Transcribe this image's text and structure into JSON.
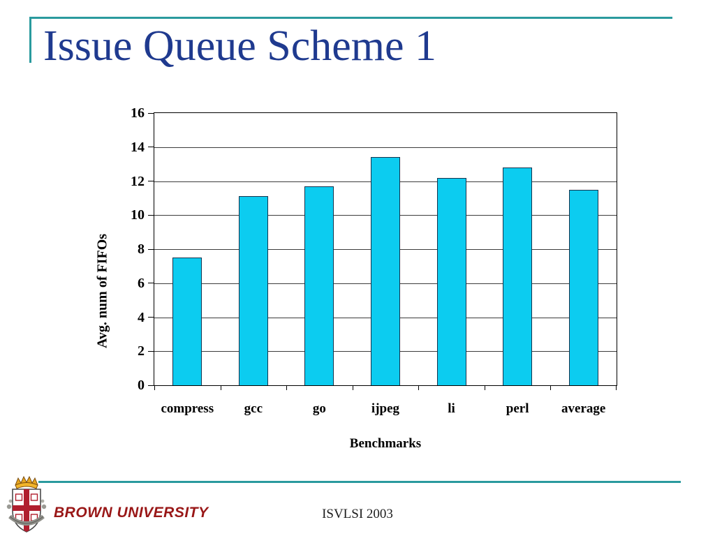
{
  "slide": {
    "title": "Issue Queue Scheme 1",
    "footer_center": "ISVLSI 2003",
    "brand": "BROWN UNIVERSITY"
  },
  "colors": {
    "accent_teal": "#2a9a9e",
    "title_blue": "#1f3a8f",
    "bar_fill": "#0cccf0",
    "bar_border": "#16334d",
    "brand_red": "#991717",
    "footer_gray": "#1c1c1c"
  },
  "chart_data": {
    "type": "bar",
    "title": "",
    "categories": [
      "compress",
      "gcc",
      "go",
      "ijpeg",
      "li",
      "perl",
      "average"
    ],
    "values": [
      7.5,
      11.1,
      11.7,
      13.4,
      12.2,
      12.8,
      11.5
    ],
    "xlabel": "Benchmarks",
    "ylabel": "Avg. num of FIFOs",
    "ylim": [
      0,
      16
    ],
    "ytick_step": 2,
    "grid": true,
    "legend_position": "none"
  }
}
